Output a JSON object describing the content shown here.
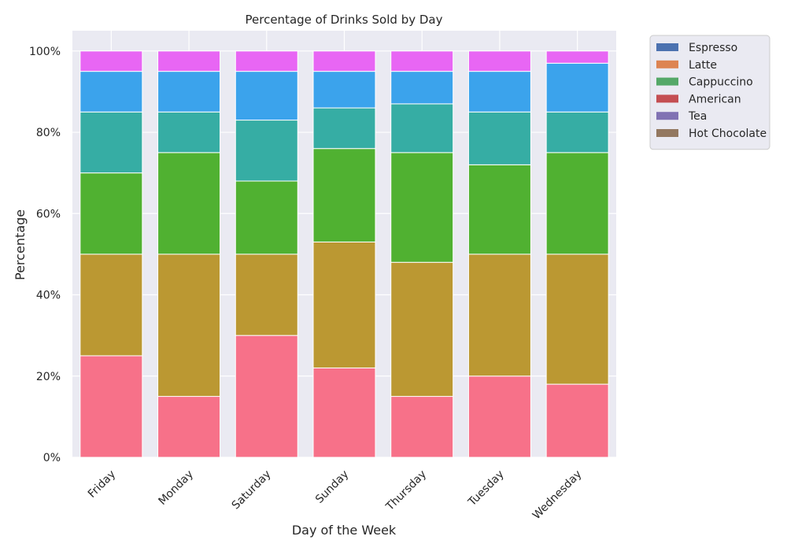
{
  "chart_data": {
    "type": "bar",
    "stacked": true,
    "title": "Percentage of Drinks Sold by Day",
    "xlabel": "Day of the Week",
    "ylabel": "Percentage",
    "ylim": [
      0,
      105
    ],
    "yticks": [
      0,
      20,
      40,
      60,
      80,
      100
    ],
    "ytick_labels": [
      "0%",
      "20%",
      "40%",
      "60%",
      "80%",
      "100%"
    ],
    "grid": true,
    "legend_position": "outside-top-right",
    "categories": [
      "Friday",
      "Monday",
      "Saturday",
      "Sunday",
      "Thursday",
      "Tuesday",
      "Wednesday"
    ],
    "segment_colors": [
      "#f77189",
      "#bb9832",
      "#50b131",
      "#36ada4",
      "#3ba3ec",
      "#e866f4"
    ],
    "segments": [
      {
        "values": [
          25,
          15,
          30,
          22,
          15,
          20,
          18
        ]
      },
      {
        "values": [
          25,
          35,
          20,
          31,
          33,
          30,
          32
        ]
      },
      {
        "values": [
          20,
          25,
          18,
          23,
          27,
          22,
          25
        ]
      },
      {
        "values": [
          15,
          10,
          15,
          10,
          12,
          13,
          10
        ]
      },
      {
        "values": [
          10,
          10,
          12,
          9,
          8,
          10,
          12
        ]
      },
      {
        "values": [
          5,
          5,
          5,
          5,
          5,
          5,
          3
        ]
      }
    ],
    "legend": [
      {
        "name": "Espresso",
        "color": "#4c72b0"
      },
      {
        "name": "Latte",
        "color": "#dd8452"
      },
      {
        "name": "Cappuccino",
        "color": "#55a868"
      },
      {
        "name": "American",
        "color": "#c44e52"
      },
      {
        "name": "Tea",
        "color": "#8172b3"
      },
      {
        "name": "Hot Chocolate",
        "color": "#937860"
      }
    ],
    "plot_background": "#eaeaf2",
    "grid_color": "#ffffff"
  }
}
